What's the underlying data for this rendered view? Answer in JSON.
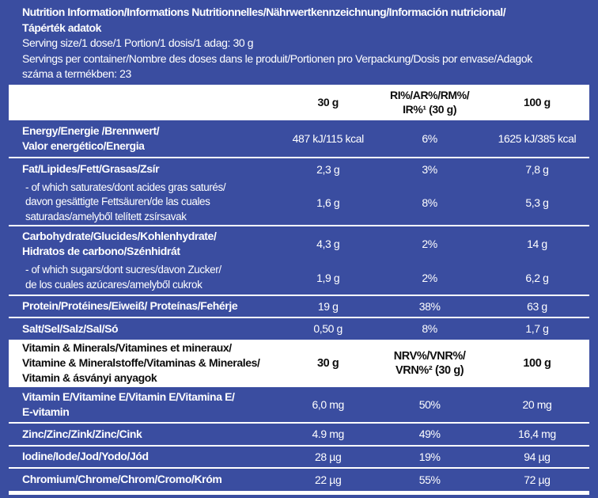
{
  "colors": {
    "background_blue": "#3a4da0",
    "row_text": "#ffffff",
    "header_box_background": "#ffffff",
    "header_box_text": "#0d0d0d",
    "separator": "#ffffff"
  },
  "header": {
    "title": "Nutrition Information/Informations Nutritionnelles/Nährwertkennzeichnung/Información nutricional/\nTápérték adatok",
    "serving_size": "Serving size/1 dose/1 Portion/1 dosis/1 adag: 30 g",
    "servings_per_container": "Servings per container/Nombre des doses dans le produit/Portionen pro Verpackung/Dosis por envase/Adagok\nszáma a termékben: 23"
  },
  "table": {
    "header_row": {
      "col_30g": "30 g",
      "col_ri": "RI%/AR%/RM%/\nIR%¹ (30 g)",
      "col_100g": "100 g"
    },
    "rows": [
      {
        "label": "Energy/Energie /Brennwert/\nValor energético/Energia",
        "v30": "487 kJ/115 kcal",
        "ri": "6%",
        "v100": "1625 kJ/385 kcal"
      },
      {
        "label": "Fat/Lipides/Fett/Grasas/Zsír",
        "v30": "2,3 g",
        "ri": "3%",
        "v100": "7,8 g"
      },
      {
        "label": "- of which saturates/dont acides gras saturés/\ndavon gesättigte Fettsäuren/de las cuales\nsaturadas/amelyből telített zsírsavak",
        "v30": "1,6 g",
        "ri": "8%",
        "v100": "5,3 g"
      },
      {
        "label": "Carbohydrate/Glucides/Kohlenhydrate/\nHidratos de carbono/Szénhidrát",
        "v30": "4,3 g",
        "ri": "2%",
        "v100": "14 g"
      },
      {
        "label": "- of which sugars/dont sucres/davon Zucker/\nde los cuales azúcares/amelyből cukrok",
        "v30": "1,9 g",
        "ri": "2%",
        "v100": "6,2 g"
      },
      {
        "label": "Protein/Protéines/Eiweiß/ Proteínas/Fehérje",
        "v30": "19 g",
        "ri": "38%",
        "v100": "63 g"
      },
      {
        "label": "Salt/Sel/Salz/Sal/Só",
        "v30": "0,50 g",
        "ri": "8%",
        "v100": "1,7 g"
      }
    ],
    "vitamins_header": {
      "label": "Vitamin & Minerals/Vitamines et mineraux/\nVitamine & Mineralstoffe/Vitaminas & Minerales/\nVitamin & ásványi anyagok",
      "col_30g": "30 g",
      "col_nrv": "NRV%/VNR%/\nVRN%² (30 g)",
      "col_100g": "100 g"
    },
    "vitamin_rows": [
      {
        "label": "Vitamin E/Vitamine E/Vitamin E/Vitamina E/\nE-vitamin",
        "v30": "6,0 mg",
        "nrv": "50%",
        "v100": "20 mg"
      },
      {
        "label": "Zinc/Zinc/Zink/Zinc/Cink",
        "v30": "4.9 mg",
        "nrv": "49%",
        "v100": "16,4 mg"
      },
      {
        "label": "Iodine/Iode/Jod/Yodo/Jód",
        "v30": "28 µg",
        "nrv": "19%",
        "v100": "94 µg"
      },
      {
        "label": "Chromium/Chrome/Chrom/Cromo/Króm",
        "v30": "22 µg",
        "nrv": "55%",
        "v100": "72 µg"
      }
    ]
  }
}
